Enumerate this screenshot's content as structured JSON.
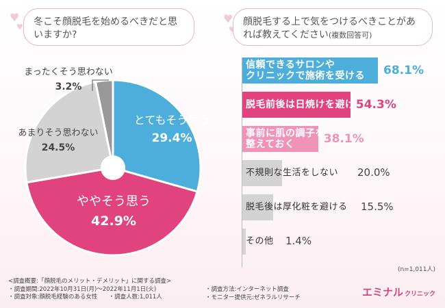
{
  "question1": "冬こそ顔脱毛を始めるべきだと思いますか?",
  "question2": "顔脱毛する上で気をつけるべきことがあれば教えてください",
  "question2_note": "(複数回答可)",
  "colors": {
    "blue": "#4eaedb",
    "pink": "#e0437e",
    "lightpink": "#ef93b8",
    "gray": "#d3d3d3",
    "darkgray": "#999999"
  },
  "chart_data": [
    {
      "type": "pie",
      "title": "冬こそ顔脱毛を始めるべきだと思いますか?",
      "slices": [
        {
          "label": "とてもそう思う",
          "value": 29.4,
          "pct_text": "29.4%"
        },
        {
          "label": "ややそう思う",
          "value": 42.9,
          "pct_text": "42.9%"
        },
        {
          "label": "あまりそう思わない",
          "value": 24.5,
          "pct_text": "24.5%"
        },
        {
          "label": "まったくそう思わない",
          "value": 3.2,
          "pct_text": "3.2%"
        }
      ]
    },
    {
      "type": "bar",
      "orientation": "horizontal",
      "title": "顔脱毛する上で気をつけるべきことがあれば教えてください(複数回答可)",
      "categories": [
        "信頼できるサロンやクリニックで施術を受ける",
        "脱毛前後は日焼けを避ける",
        "事前に肌の調子を整えておく",
        "不規則な生活をしない",
        "脱毛後は厚化粧を避ける",
        "その他"
      ],
      "values": [
        68.1,
        54.3,
        38.1,
        20.0,
        15.5,
        1.4
      ],
      "pct_texts": [
        "68.1%",
        "54.3%",
        "38.1%",
        "20.0%",
        "15.5%",
        "1.4%"
      ],
      "display_lines": [
        [
          "信頼できるサロンや",
          "クリニックで施術を受ける"
        ],
        [
          "脱毛前後は日焼けを避ける"
        ],
        [
          "事前に肌の調子を",
          "整えておく"
        ],
        [
          "不規則な生活をしない"
        ],
        [
          "脱毛後は厚化粧を避ける"
        ],
        [
          "その他"
        ]
      ],
      "xlim": [
        0,
        100
      ]
    }
  ],
  "sample_size": "(n=1,011人)",
  "footer": {
    "line1": "<調査概要:「顔脱毛のメリット・デメリット」に関する調査>",
    "line2": "・調査期間:2022年10月31日(月)〜2022年11月1日(火)",
    "line3a": "・調査対象:顔脱毛経験のある女性",
    "line3b": "・調査人数:1,011人",
    "line2b": "・調査方法:インターネット調査",
    "line3c": "・モニター提供元:ゼネラルリサーチ"
  },
  "logo": {
    "main": "エミナル",
    "sub": "クリニック"
  }
}
